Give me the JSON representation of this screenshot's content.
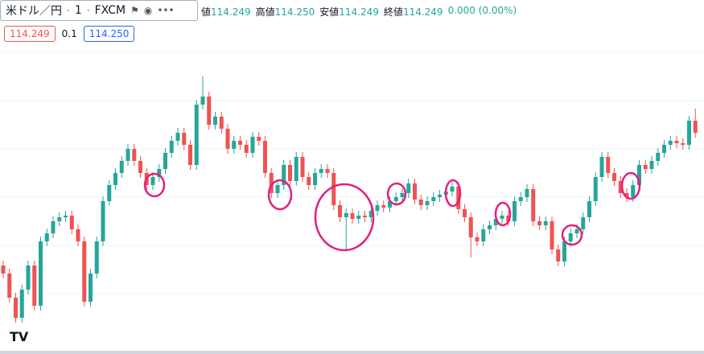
{
  "header": {
    "symbol": "米ドル／円",
    "interval": "1",
    "source": "FXCM",
    "ohlc": [
      {
        "label": "値",
        "value": "114.249"
      },
      {
        "label": "高値",
        "value": "114.250"
      },
      {
        "label": "安値",
        "value": "114.249"
      },
      {
        "label": "終値",
        "value": "114.249"
      }
    ],
    "change": "0.000 (0.00%)",
    "bid": "114.249",
    "spread": "0.1",
    "ask": "114.250"
  },
  "chart_data": {
    "type": "candlestick",
    "up_color": "#26a69a",
    "down_color": "#ef5350",
    "ylim": [
      0,
      440
    ],
    "series": [
      {
        "name": "open",
        "values": [
          110,
          100,
          70,
          45,
          80,
          110,
          60,
          140,
          150,
          165,
          170,
          172,
          155,
          140,
          65,
          100,
          140,
          190,
          210,
          225,
          240,
          255,
          240,
          225,
          210,
          220,
          230,
          250,
          265,
          275,
          260,
          235,
          310,
          320,
          285,
          295,
          280,
          255,
          265,
          260,
          250,
          270,
          265,
          225,
          200,
          210,
          235,
          215,
          245,
          220,
          210,
          225,
          230,
          225,
          185,
          170,
          175,
          168,
          172,
          170,
          178,
          185,
          182,
          190,
          195,
          200,
          212,
          192,
          185,
          190,
          195,
          198,
          202,
          208,
          180,
          170,
          145,
          140,
          155,
          160,
          168,
          172,
          165,
          190,
          195,
          205,
          165,
          160,
          165,
          130,
          115,
          140,
          150,
          155,
          170,
          190,
          220,
          245,
          225,
          215,
          200,
          195,
          210,
          235,
          230,
          240,
          250,
          260,
          265,
          262,
          260,
          290
        ]
      },
      {
        "name": "high",
        "values": [
          116,
          106,
          76,
          86,
          116,
          116,
          146,
          156,
          171,
          176,
          178,
          178,
          161,
          146,
          106,
          146,
          196,
          216,
          231,
          246,
          261,
          261,
          246,
          231,
          226,
          236,
          256,
          271,
          281,
          281,
          266,
          316,
          345,
          326,
          301,
          301,
          286,
          271,
          271,
          266,
          276,
          276,
          271,
          231,
          216,
          241,
          241,
          251,
          251,
          226,
          231,
          236,
          236,
          231,
          191,
          181,
          181,
          178,
          178,
          184,
          191,
          191,
          196,
          201,
          206,
          218,
          218,
          198,
          196,
          201,
          204,
          208,
          214,
          214,
          186,
          176,
          151,
          161,
          166,
          174,
          178,
          178,
          196,
          201,
          211,
          211,
          171,
          171,
          171,
          136,
          146,
          156,
          161,
          176,
          196,
          226,
          251,
          251,
          231,
          221,
          206,
          216,
          241,
          241,
          246,
          256,
          266,
          271,
          271,
          268,
          296,
          305
        ]
      },
      {
        "name": "low",
        "values": [
          94,
          64,
          39,
          39,
          74,
          54,
          54,
          134,
          144,
          159,
          164,
          149,
          134,
          59,
          59,
          94,
          134,
          184,
          204,
          219,
          234,
          234,
          219,
          204,
          204,
          214,
          224,
          244,
          259,
          254,
          229,
          229,
          304,
          279,
          279,
          274,
          249,
          249,
          254,
          244,
          244,
          259,
          219,
          194,
          194,
          204,
          209,
          209,
          214,
          204,
          204,
          219,
          219,
          179,
          164,
          130,
          162,
          162,
          164,
          164,
          172,
          176,
          176,
          184,
          189,
          194,
          186,
          179,
          179,
          184,
          189,
          192,
          196,
          174,
          164,
          120,
          134,
          134,
          149,
          154,
          162,
          159,
          159,
          184,
          189,
          159,
          154,
          154,
          124,
          109,
          109,
          134,
          144,
          149,
          164,
          184,
          214,
          219,
          209,
          194,
          189,
          189,
          204,
          224,
          224,
          234,
          244,
          254,
          256,
          254,
          254,
          269
        ]
      },
      {
        "name": "close",
        "values": [
          100,
          70,
          45,
          80,
          110,
          60,
          140,
          150,
          165,
          170,
          172,
          155,
          140,
          65,
          100,
          140,
          190,
          210,
          225,
          240,
          255,
          240,
          225,
          210,
          220,
          230,
          250,
          265,
          275,
          260,
          235,
          310,
          320,
          285,
          295,
          280,
          255,
          265,
          260,
          250,
          270,
          265,
          225,
          200,
          210,
          235,
          215,
          245,
          220,
          210,
          225,
          230,
          225,
          185,
          170,
          175,
          168,
          172,
          170,
          178,
          185,
          182,
          190,
          195,
          200,
          212,
          192,
          185,
          190,
          195,
          198,
          202,
          208,
          180,
          170,
          145,
          140,
          155,
          160,
          168,
          172,
          165,
          190,
          195,
          205,
          165,
          160,
          165,
          130,
          115,
          140,
          150,
          155,
          170,
          190,
          220,
          245,
          225,
          215,
          200,
          195,
          210,
          235,
          230,
          240,
          250,
          260,
          265,
          262,
          260,
          290,
          275
        ]
      }
    ]
  }
}
